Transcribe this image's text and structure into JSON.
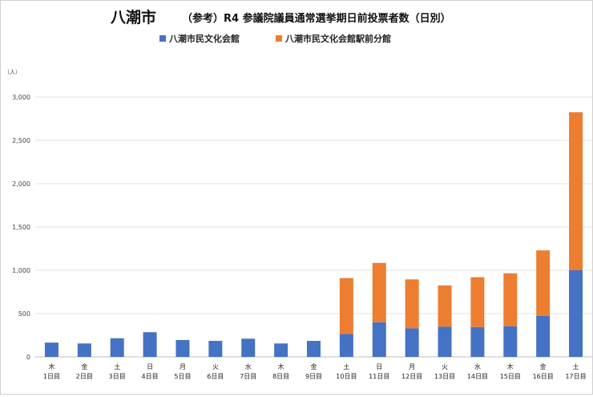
{
  "chart_data": {
    "type": "bar",
    "stacked": true,
    "title_city": "八潮市",
    "title": "（参考）R4 参議院議員通常選挙期日前投票者数（日別）",
    "ylabel": "（人）",
    "ylim": [
      0,
      3000
    ],
    "yticks": [
      0,
      500,
      1000,
      1500,
      2000,
      2500,
      3000
    ],
    "ytick_labels": [
      "0",
      "500",
      "1,000",
      "1,500",
      "2,000",
      "2,500",
      "3,000"
    ],
    "grid": true,
    "legend_position": "top",
    "weekdays": [
      "木",
      "金",
      "土",
      "日",
      "月",
      "火",
      "水",
      "木",
      "金",
      "土",
      "日",
      "月",
      "火",
      "水",
      "木",
      "金",
      "土"
    ],
    "categories": [
      "1日目",
      "2日目",
      "3日目",
      "4日目",
      "5日目",
      "6日目",
      "7日目",
      "8日目",
      "9日目",
      "10日目",
      "11日目",
      "12日目",
      "13日目",
      "14日目",
      "15日目",
      "16日目",
      "17日目"
    ],
    "series": [
      {
        "name": "八潮市民文化会館",
        "color": "#4472c4",
        "values": [
          165,
          155,
          215,
          285,
          195,
          185,
          210,
          155,
          185,
          265,
          400,
          330,
          350,
          345,
          355,
          475,
          1000
        ]
      },
      {
        "name": "八潮市民文化会館駅前分館",
        "color": "#ed7d31",
        "values": [
          0,
          0,
          0,
          0,
          0,
          0,
          0,
          0,
          0,
          645,
          685,
          565,
          475,
          575,
          610,
          755,
          1825
        ]
      }
    ]
  }
}
